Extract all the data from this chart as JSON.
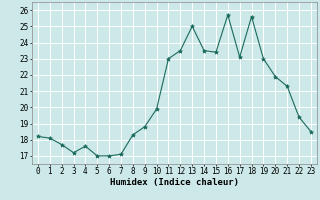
{
  "x": [
    0,
    1,
    2,
    3,
    4,
    5,
    6,
    7,
    8,
    9,
    10,
    11,
    12,
    13,
    14,
    15,
    16,
    17,
    18,
    19,
    20,
    21,
    22,
    23
  ],
  "y": [
    18.2,
    18.1,
    17.7,
    17.2,
    17.6,
    17.0,
    17.0,
    17.1,
    18.3,
    18.8,
    19.9,
    23.0,
    23.5,
    25.0,
    23.5,
    23.4,
    25.7,
    23.1,
    25.6,
    23.0,
    21.9,
    21.3,
    19.4,
    18.5
  ],
  "xlabel": "Humidex (Indice chaleur)",
  "xlim": [
    -0.5,
    23.5
  ],
  "ylim": [
    16.5,
    26.5
  ],
  "yticks": [
    17,
    18,
    19,
    20,
    21,
    22,
    23,
    24,
    25,
    26
  ],
  "xticks": [
    0,
    1,
    2,
    3,
    4,
    5,
    6,
    7,
    8,
    9,
    10,
    11,
    12,
    13,
    14,
    15,
    16,
    17,
    18,
    19,
    20,
    21,
    22,
    23
  ],
  "line_color": "#1a6b5a",
  "marker_color": "#1a6b5a",
  "bg_color": "#cce8e8",
  "grid_color": "#ffffff",
  "label_fontsize": 6.5,
  "tick_fontsize": 5.5
}
